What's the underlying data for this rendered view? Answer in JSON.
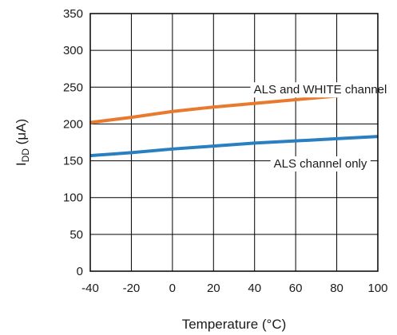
{
  "chart_data": {
    "type": "line",
    "title": "",
    "xlabel": "Temperature (°C)",
    "ylabel_main": "I",
    "ylabel_sub": "DD",
    "ylabel_unit": " (μA)",
    "xlim": [
      -40,
      100
    ],
    "ylim": [
      0,
      350
    ],
    "x_ticks": [
      -40,
      -20,
      0,
      20,
      40,
      60,
      80,
      100
    ],
    "y_ticks": [
      0,
      50,
      100,
      150,
      200,
      250,
      300,
      350
    ],
    "grid": true,
    "series": [
      {
        "name": "ALS and WHITE channel",
        "color": "#e8792e",
        "x": [
          -40,
          -20,
          0,
          20,
          40,
          60,
          80,
          100
        ],
        "values": [
          202,
          209,
          217,
          223,
          228,
          233,
          238,
          243
        ]
      },
      {
        "name": "ALS channel only",
        "color": "#2a7fc1",
        "x": [
          -40,
          -20,
          0,
          20,
          40,
          60,
          80,
          100
        ],
        "values": [
          157,
          161,
          166,
          170,
          174,
          177,
          180,
          183
        ]
      }
    ]
  }
}
